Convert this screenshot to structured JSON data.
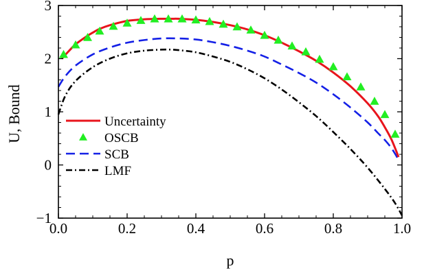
{
  "chart_data": {
    "type": "line",
    "xlabel": "p",
    "ylabel": "U, Bound",
    "xlim": [
      0.0,
      1.0
    ],
    "ylim": [
      -1,
      3
    ],
    "x_ticks": [
      "0.0",
      "0.2",
      "0.4",
      "0.6",
      "0.8",
      "1.0"
    ],
    "y_ticks": [
      "−1",
      "0",
      "1",
      "2",
      "3"
    ],
    "grid": false,
    "legend_position": "bottom-left",
    "series": [
      {
        "name": "Uncertainty",
        "style": "solid",
        "color": "#e8141c",
        "x": [
          0.01,
          0.03,
          0.05,
          0.08,
          0.1,
          0.12,
          0.15,
          0.2,
          0.25,
          0.3,
          0.33,
          0.35,
          0.4,
          0.45,
          0.5,
          0.55,
          0.6,
          0.65,
          0.7,
          0.75,
          0.8,
          0.85,
          0.9,
          0.93,
          0.95,
          0.97,
          0.99
        ],
        "y": [
          2.0,
          2.14,
          2.27,
          2.41,
          2.49,
          2.56,
          2.63,
          2.71,
          2.74,
          2.75,
          2.75,
          2.75,
          2.73,
          2.69,
          2.63,
          2.55,
          2.44,
          2.3,
          2.14,
          1.96,
          1.74,
          1.48,
          1.16,
          0.92,
          0.71,
          0.47,
          0.15
        ]
      },
      {
        "name": "OSCB",
        "style": "triangle-markers",
        "color": "#22ee22",
        "x": [
          0.015,
          0.05,
          0.085,
          0.12,
          0.16,
          0.2,
          0.24,
          0.28,
          0.32,
          0.36,
          0.4,
          0.44,
          0.48,
          0.52,
          0.56,
          0.6,
          0.64,
          0.68,
          0.72,
          0.76,
          0.8,
          0.84,
          0.88,
          0.92,
          0.95,
          0.98
        ],
        "y": [
          2.08,
          2.26,
          2.4,
          2.52,
          2.61,
          2.67,
          2.72,
          2.75,
          2.75,
          2.75,
          2.73,
          2.7,
          2.65,
          2.6,
          2.54,
          2.44,
          2.35,
          2.24,
          2.13,
          1.99,
          1.85,
          1.66,
          1.47,
          1.2,
          0.95,
          0.58
        ]
      },
      {
        "name": "SCB",
        "style": "dashed",
        "color": "#1420e6",
        "x": [
          0.0,
          0.02,
          0.05,
          0.1,
          0.15,
          0.2,
          0.25,
          0.3,
          0.35,
          0.4,
          0.45,
          0.5,
          0.55,
          0.6,
          0.65,
          0.7,
          0.75,
          0.8,
          0.85,
          0.9,
          0.93,
          0.95,
          0.97,
          0.99
        ],
        "y": [
          1.47,
          1.67,
          1.87,
          2.08,
          2.21,
          2.3,
          2.35,
          2.38,
          2.38,
          2.36,
          2.31,
          2.24,
          2.15,
          2.04,
          1.89,
          1.73,
          1.55,
          1.33,
          1.08,
          0.8,
          0.6,
          0.47,
          0.31,
          0.1
        ]
      },
      {
        "name": "LMF",
        "style": "dash-dot",
        "color": "#000000",
        "x": [
          0.0,
          0.02,
          0.05,
          0.1,
          0.15,
          0.2,
          0.25,
          0.3,
          0.33,
          0.35,
          0.4,
          0.45,
          0.5,
          0.55,
          0.6,
          0.65,
          0.7,
          0.75,
          0.8,
          0.85,
          0.9,
          0.95,
          0.98,
          1.0
        ],
        "y": [
          0.95,
          1.3,
          1.58,
          1.84,
          2.0,
          2.1,
          2.15,
          2.17,
          2.17,
          2.16,
          2.12,
          2.04,
          1.94,
          1.8,
          1.63,
          1.42,
          1.18,
          0.92,
          0.62,
          0.3,
          -0.05,
          -0.45,
          -0.72,
          -0.95
        ]
      }
    ]
  }
}
